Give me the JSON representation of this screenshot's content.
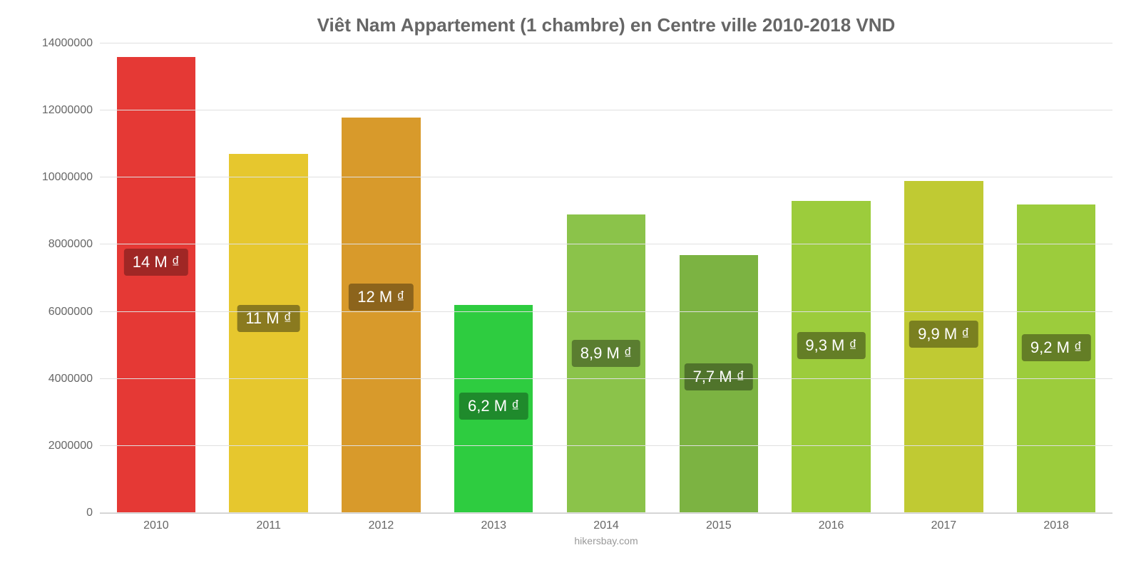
{
  "chart": {
    "type": "bar",
    "title": "Viêt Nam Appartement (1 chambre) en Centre ville 2010-2018 VND",
    "title_fontsize": 26,
    "title_color": "#666666",
    "categories": [
      "2010",
      "2011",
      "2012",
      "2013",
      "2014",
      "2015",
      "2016",
      "2017",
      "2018"
    ],
    "values": [
      13600000,
      10700000,
      11800000,
      6200000,
      8900000,
      7700000,
      9300000,
      9900000,
      9200000
    ],
    "value_labels": [
      "14 M ₫",
      "11 M ₫",
      "12 M ₫",
      "6,2 M ₫",
      "8,9 M ₫",
      "7,7 M ₫",
      "9,3 M ₫",
      "9,9 M ₫",
      "9,2 M ₫"
    ],
    "bar_colors": [
      "#e53935",
      "#e6c72e",
      "#d89a2b",
      "#2ecc40",
      "#8bc34a",
      "#7cb342",
      "#9ccc3c",
      "#c0ca33",
      "#9ccc3c"
    ],
    "label_bg_colors": [
      "#a02725",
      "#8a7a1f",
      "#8c641c",
      "#1f8a2c",
      "#5a7d30",
      "#50742b",
      "#647e26",
      "#7a8020",
      "#647e26"
    ],
    "bar_width_pct": 70,
    "ylim": [
      0,
      14000000
    ],
    "yticks": [
      0,
      2000000,
      4000000,
      6000000,
      8000000,
      10000000,
      12000000,
      14000000
    ],
    "ytick_labels": [
      "0",
      "2000000",
      "4000000",
      "6000000",
      "8000000",
      "10000000",
      "12000000",
      "14000000"
    ],
    "axis_fontsize": 16,
    "label_fontsize": 22,
    "grid_color": "#e0e0e0",
    "background_color": "#ffffff",
    "source": "hikersbay.com",
    "source_fontsize": 14
  }
}
